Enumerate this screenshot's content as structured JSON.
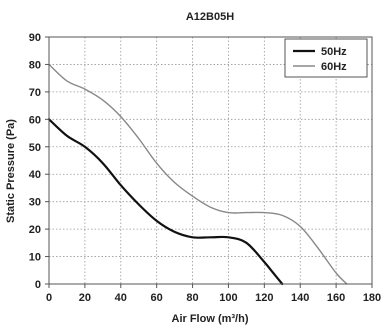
{
  "chart_data": {
    "type": "line",
    "title": "A12B05H",
    "xlabel": "Air Flow (m³/h)",
    "ylabel": "Static Pressure (Pa)",
    "xlim": [
      0,
      180
    ],
    "ylim": [
      0,
      90
    ],
    "xticks": [
      0,
      20,
      40,
      60,
      80,
      100,
      120,
      140,
      160,
      180
    ],
    "yticks": [
      0,
      10,
      20,
      30,
      40,
      50,
      60,
      70,
      80,
      90
    ],
    "grid": true,
    "legend_position": "top-right",
    "series": [
      {
        "name": "50Hz",
        "color": "#111111",
        "style": "solid",
        "x": [
          0,
          10,
          20,
          30,
          40,
          50,
          60,
          70,
          80,
          90,
          100,
          110,
          120,
          125,
          130
        ],
        "y": [
          60,
          54,
          50,
          44,
          36,
          29,
          23,
          19,
          17,
          17,
          17,
          15,
          8,
          4,
          0
        ]
      },
      {
        "name": "60Hz",
        "color": "#888888",
        "style": "solid",
        "x": [
          0,
          10,
          20,
          30,
          40,
          50,
          60,
          70,
          80,
          90,
          100,
          110,
          120,
          130,
          140,
          150,
          160,
          166
        ],
        "y": [
          80,
          74,
          71,
          67,
          61,
          53,
          44,
          37,
          32,
          28,
          26,
          26,
          26,
          25,
          21,
          13,
          4,
          0
        ]
      }
    ]
  }
}
